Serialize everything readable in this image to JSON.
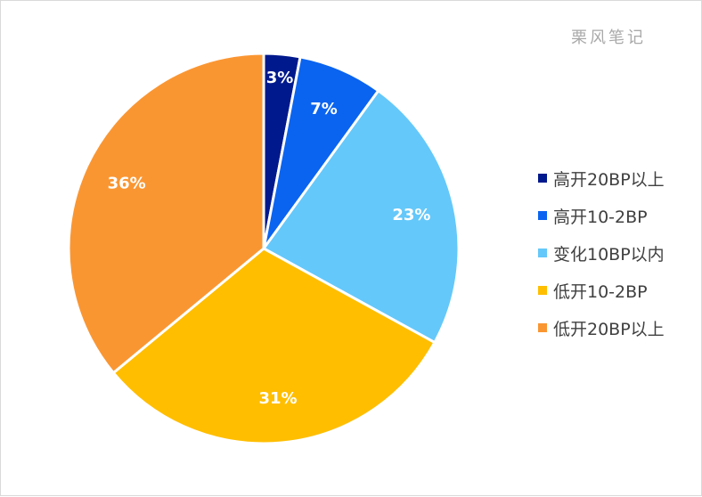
{
  "watermark": "栗风笔记",
  "chart_data": {
    "type": "pie",
    "legend_position": "right",
    "series": [
      {
        "name": "高开20BP以上",
        "value": 3,
        "label": "3%",
        "color": "#00198c"
      },
      {
        "name": "高开10-2BP",
        "value": 7,
        "label": "7%",
        "color": "#0a64f0"
      },
      {
        "name": "变化10BP以内",
        "value": 23,
        "label": "23%",
        "color": "#64c8fa"
      },
      {
        "name": "低开10-2BP",
        "value": 31,
        "label": "31%",
        "color": "#ffbe00"
      },
      {
        "name": "低开20BP以上",
        "value": 36,
        "label": "36%",
        "color": "#fa9632"
      }
    ]
  }
}
